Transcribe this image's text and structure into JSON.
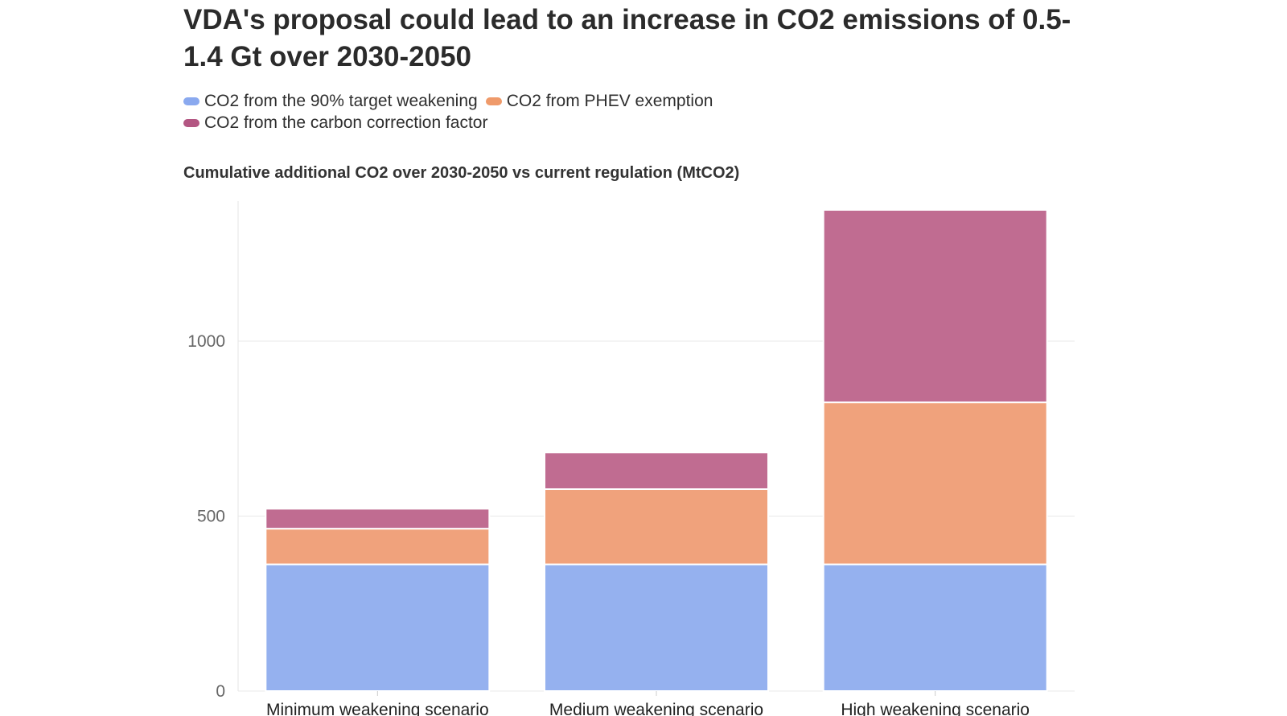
{
  "title": "VDA's proposal could lead to an increase in CO2 emissions of 0.5-1.4 Gt over 2030-2050",
  "legend": {
    "row1": [
      {
        "label": "CO2 from the 90% target weakening",
        "color": "#8aa9ef"
      },
      {
        "label": "CO2 from PHEV exemption",
        "color": "#ef9a6a"
      }
    ],
    "row2": [
      {
        "label": "CO2 from the carbon correction factor",
        "color": "#b35682"
      }
    ]
  },
  "chart_data": {
    "type": "bar",
    "stacked": true,
    "title": "VDA's proposal could lead to an increase in CO2 emissions of 0.5-1.4 Gt over 2030-2050",
    "subtitle": "Cumulative additional CO2 over 2030-2050 vs current regulation (MtCO2)",
    "categories": [
      "Minimum weakening scenario",
      "Medium weakening scenario",
      "High weakening scenario"
    ],
    "series": [
      {
        "name": "CO2 from the 90% target weakening",
        "values": [
          362,
          362,
          362
        ],
        "color": "#95b1ef"
      },
      {
        "name": "CO2 from PHEV exemption",
        "values": [
          102,
          215,
          463
        ],
        "color": "#f0a27c"
      },
      {
        "name": "CO2 from the carbon correction factor",
        "values": [
          57,
          105,
          550
        ],
        "color": "#c06c91"
      }
    ],
    "yticks": [
      0,
      500,
      1000
    ],
    "ylim": [
      0,
      1400
    ],
    "grid": true,
    "legend_position": "top-left"
  }
}
